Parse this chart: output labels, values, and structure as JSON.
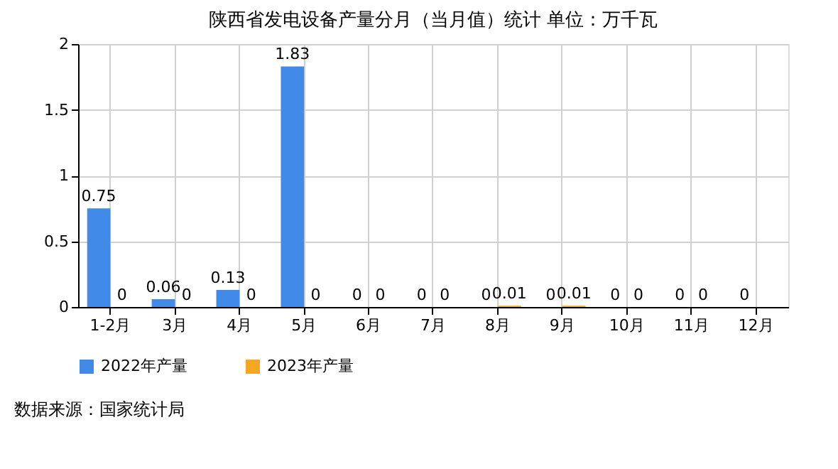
{
  "chart_data": {
    "type": "bar",
    "title": "陕西省发电设备产量分月（当月值）统计 单位：万千瓦",
    "categories": [
      "1-2月",
      "3月",
      "4月",
      "5月",
      "6月",
      "7月",
      "8月",
      "9月",
      "10月",
      "11月",
      "12月"
    ],
    "series": [
      {
        "name": "2022年产量",
        "color": "#418ae8",
        "values": [
          0.75,
          0.06,
          0.13,
          1.83,
          0,
          0,
          0,
          0,
          0,
          0,
          0
        ]
      },
      {
        "name": "2023年产量",
        "color": "#f5a623",
        "values": [
          0,
          0,
          0,
          0,
          0,
          0,
          0.01,
          0.01,
          0,
          0,
          null
        ]
      }
    ],
    "ylim": [
      0,
      2
    ],
    "yticks": [
      0,
      0.5,
      1,
      1.5,
      2
    ],
    "grid": true,
    "legend": "bottom",
    "data_labels": true,
    "annotations": [
      "数据来源：国家统计局"
    ]
  }
}
